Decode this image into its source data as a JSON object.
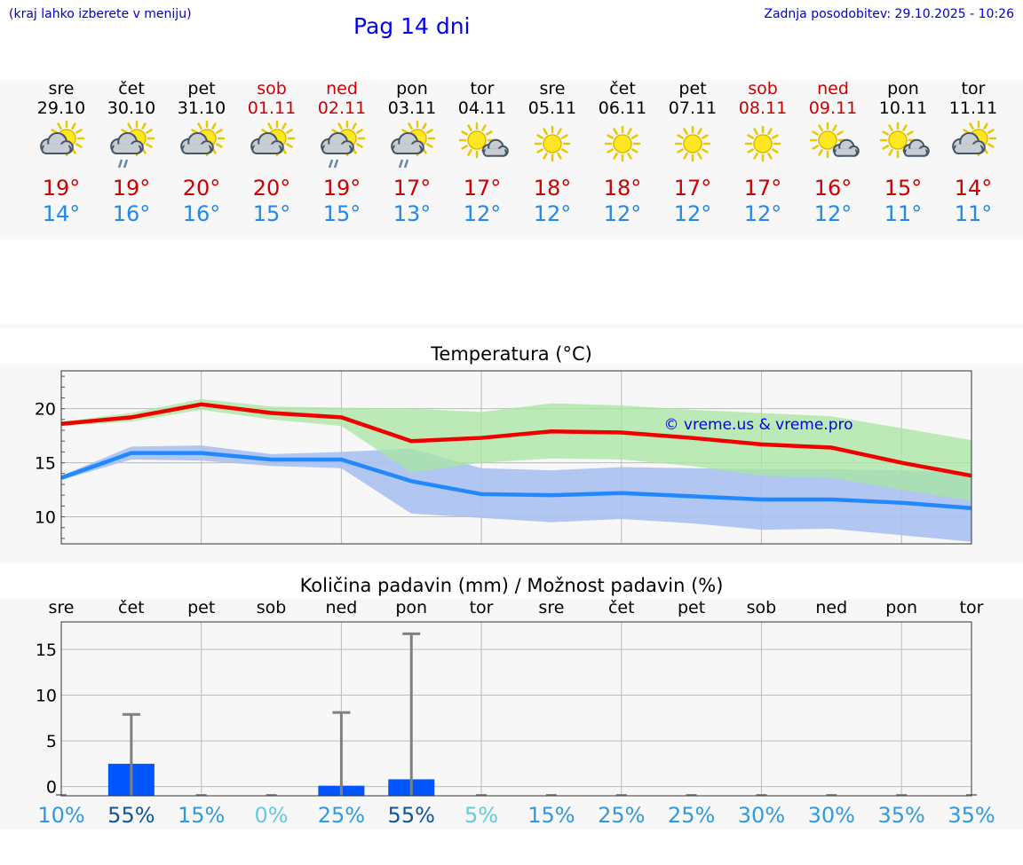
{
  "header": {
    "hint": "(kraj lahko izberete v meniju)",
    "title": "Pag 14 dni",
    "update": "Zadnja posodobitev: 29.10.2025 - 10:26"
  },
  "days": [
    {
      "name": "sre",
      "date": "29.10",
      "weekend": false,
      "icon": "sun-cloud-icon",
      "tmax": "19°",
      "tmin": "14°"
    },
    {
      "name": "čet",
      "date": "30.10",
      "weekend": false,
      "icon": "sun-cloud-rain-icon",
      "tmax": "19°",
      "tmin": "16°"
    },
    {
      "name": "pet",
      "date": "31.10",
      "weekend": false,
      "icon": "sun-cloud-icon",
      "tmax": "20°",
      "tmin": "16°"
    },
    {
      "name": "sob",
      "date": "01.11",
      "weekend": true,
      "icon": "sun-cloud-icon",
      "tmax": "20°",
      "tmin": "15°"
    },
    {
      "name": "ned",
      "date": "02.11",
      "weekend": true,
      "icon": "sun-cloud-rain-icon",
      "tmax": "19°",
      "tmin": "15°"
    },
    {
      "name": "pon",
      "date": "03.11",
      "weekend": false,
      "icon": "sun-cloud-rain-icon",
      "tmax": "17°",
      "tmin": "13°"
    },
    {
      "name": "tor",
      "date": "04.11",
      "weekend": false,
      "icon": "sun-small-cloud-icon",
      "tmax": "17°",
      "tmin": "12°"
    },
    {
      "name": "sre",
      "date": "05.11",
      "weekend": false,
      "icon": "sun-icon",
      "tmax": "18°",
      "tmin": "12°"
    },
    {
      "name": "čet",
      "date": "06.11",
      "weekend": false,
      "icon": "sun-icon",
      "tmax": "18°",
      "tmin": "12°"
    },
    {
      "name": "pet",
      "date": "07.11",
      "weekend": false,
      "icon": "sun-icon",
      "tmax": "17°",
      "tmin": "12°"
    },
    {
      "name": "sob",
      "date": "08.11",
      "weekend": true,
      "icon": "sun-icon",
      "tmax": "17°",
      "tmin": "12°"
    },
    {
      "name": "ned",
      "date": "09.11",
      "weekend": true,
      "icon": "sun-small-cloud-icon",
      "tmax": "16°",
      "tmin": "12°"
    },
    {
      "name": "pon",
      "date": "10.11",
      "weekend": false,
      "icon": "sun-small-cloud-icon",
      "tmax": "15°",
      "tmin": "11°"
    },
    {
      "name": "tor",
      "date": "11.11",
      "weekend": false,
      "icon": "sun-cloud-icon",
      "tmax": "14°",
      "tmin": "11°"
    }
  ],
  "colors": {
    "max_line": "#ee0000",
    "min_line": "#2288ff",
    "max_band": "#a8e6a0",
    "min_band": "#a8c0f0",
    "overlap_band": "#7ec3b0",
    "bar": "#0055ff",
    "errbar": "#808080",
    "weekend": "#cc0000"
  },
  "chart_data": [
    {
      "type": "line",
      "title": "Temperatura (°C)",
      "watermark": "© vreme.us & vreme.pro",
      "ylim": [
        7.5,
        23.5
      ],
      "yticks": [
        10,
        15,
        20
      ],
      "x": [
        0,
        1,
        2,
        3,
        4,
        5,
        6,
        7,
        8,
        9,
        10,
        11,
        12,
        13
      ],
      "series": [
        {
          "name": "max",
          "values": [
            18.6,
            19.2,
            20.4,
            19.6,
            19.2,
            17.0,
            17.3,
            17.9,
            17.8,
            17.3,
            16.7,
            16.4,
            15.0,
            13.8
          ],
          "band_low": [
            18.4,
            18.8,
            19.9,
            19.0,
            18.4,
            14.1,
            15.0,
            15.4,
            15.3,
            14.7,
            13.8,
            13.6,
            12.5,
            11.5
          ],
          "band_high": [
            18.8,
            19.6,
            20.9,
            20.2,
            20.1,
            20.0,
            19.7,
            20.5,
            20.3,
            19.9,
            19.6,
            19.3,
            18.2,
            17.1
          ]
        },
        {
          "name": "min",
          "values": [
            13.6,
            15.9,
            15.9,
            15.3,
            15.3,
            13.3,
            12.1,
            12.0,
            12.2,
            11.9,
            11.6,
            11.6,
            11.3,
            10.8
          ],
          "band_low": [
            13.4,
            15.3,
            15.2,
            14.7,
            14.5,
            10.3,
            9.9,
            9.5,
            9.8,
            9.4,
            8.8,
            8.9,
            8.3,
            7.7
          ],
          "band_high": [
            13.8,
            16.5,
            16.6,
            15.8,
            16.0,
            16.3,
            14.5,
            14.3,
            14.6,
            14.5,
            14.4,
            14.4,
            14.3,
            14.0
          ]
        }
      ]
    },
    {
      "type": "bar",
      "title": "Količina padavin (mm) / Možnost padavin (%)",
      "ylim": [
        -1,
        18
      ],
      "yticks": [
        0,
        5,
        10,
        15
      ],
      "categories": [
        "sre",
        "čet",
        "pet",
        "sob",
        "ned",
        "pon",
        "tor",
        "sre",
        "čet",
        "pet",
        "sob",
        "ned",
        "pon",
        "tor"
      ],
      "values": [
        0,
        2.5,
        0,
        0,
        0.1,
        0.8,
        0,
        0,
        0,
        0,
        0,
        0,
        0,
        0
      ],
      "error_high": [
        0,
        7.9,
        0,
        0,
        8.1,
        16.7,
        0,
        0,
        0,
        0,
        0,
        0,
        0,
        0
      ],
      "probability": [
        "10%",
        "55%",
        "15%",
        "0%",
        "25%",
        "55%",
        "5%",
        "15%",
        "25%",
        "25%",
        "30%",
        "30%",
        "35%",
        "35%"
      ],
      "probability_colors": [
        "#3399dd",
        "#115599",
        "#3399dd",
        "#66ccdd",
        "#3399dd",
        "#115599",
        "#66ccdd",
        "#3399dd",
        "#3399dd",
        "#3399dd",
        "#3399dd",
        "#3399dd",
        "#3399dd",
        "#3399dd"
      ]
    }
  ]
}
